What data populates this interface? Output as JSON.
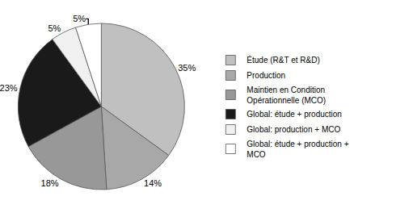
{
  "chart_data": {
    "type": "pie",
    "categories": [
      "Étude (R&T et R&D)",
      "Production",
      "Maintien en Condition\nOpérationnelle (MCO)",
      "Global: étude + production",
      "Global: production + MCO",
      "Global: étude + production +\nMCO"
    ],
    "values": [
      35,
      14,
      18,
      23,
      5,
      5
    ],
    "value_labels": [
      "35%",
      "14%",
      "18%",
      "23%",
      "5%",
      "5%"
    ],
    "colors": [
      "#c0c0c0",
      "#a8a8a8",
      "#989898",
      "#1a1a1a",
      "#f0f0f0",
      "#ffffff"
    ],
    "data_labels": true,
    "legend": "right"
  }
}
